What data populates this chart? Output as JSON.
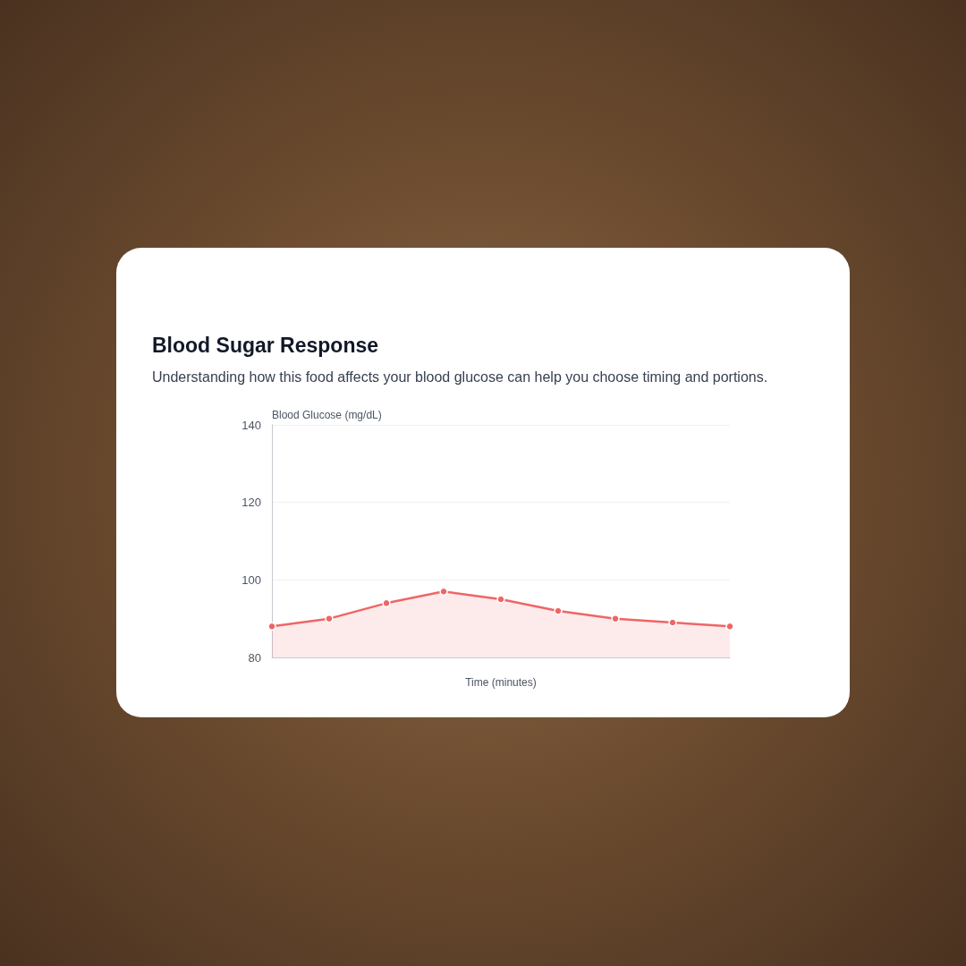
{
  "chart_data": {
    "type": "area",
    "title": "Blood Sugar Response",
    "subtitle": "Understanding how this food affects your blood glucose can help you choose timing and portions.",
    "xlabel": "Time (minutes)",
    "ylabel": "Blood Glucose (mg/dL)",
    "categories": [
      null,
      null,
      null,
      null,
      null,
      null,
      null,
      null,
      null
    ],
    "series": [
      {
        "color": "#ee6666",
        "values": [
          88,
          90,
          94,
          97,
          95,
          92,
          90,
          89,
          88
        ]
      }
    ],
    "ylim": [
      80,
      140
    ],
    "yticks": [
      80,
      100,
      120,
      140
    ],
    "grid": "y",
    "marker": "circle",
    "tick_labels": "y"
  }
}
